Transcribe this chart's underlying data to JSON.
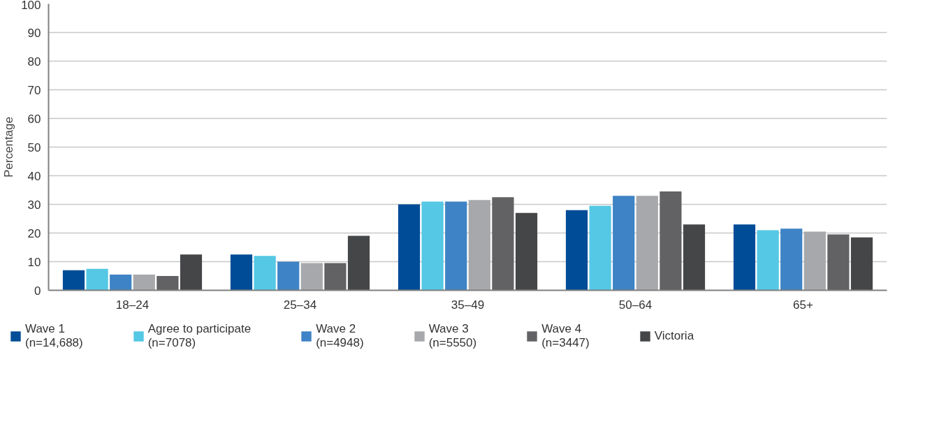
{
  "chart_data": {
    "type": "bar",
    "ylabel": "Percentage",
    "categories": [
      "18–24",
      "25–34",
      "35–49",
      "50–64",
      "65+"
    ],
    "series": [
      {
        "name": "Wave 1\n(n=14,688)",
        "color": "#004c97",
        "values": [
          7,
          12.5,
          30,
          28,
          23
        ]
      },
      {
        "name": "Agree to participate\n(n=7078)",
        "color": "#54c8e4",
        "values": [
          7.5,
          12,
          31,
          29.5,
          21
        ]
      },
      {
        "name": "Wave 2\n(n=4948)",
        "color": "#3e83c5",
        "values": [
          5.5,
          10,
          31,
          33,
          21.5
        ]
      },
      {
        "name": "Wave 3\n(n=5550)",
        "color": "#a7a8ab",
        "values": [
          5.5,
          9.5,
          31.5,
          33,
          20.5
        ]
      },
      {
        "name": "Wave 4\n(n=3447)",
        "color": "#626264",
        "values": [
          5,
          9.5,
          32.5,
          34.5,
          19.5
        ]
      },
      {
        "name": "Victoria",
        "color": "#454648",
        "values": [
          12.5,
          19,
          27,
          23,
          18.5
        ]
      }
    ],
    "ylim": [
      0,
      100
    ],
    "yticks": [
      0,
      10,
      20,
      30,
      40,
      50,
      60,
      70,
      80,
      90,
      100
    ],
    "grid": "y",
    "legend": "bottom"
  }
}
